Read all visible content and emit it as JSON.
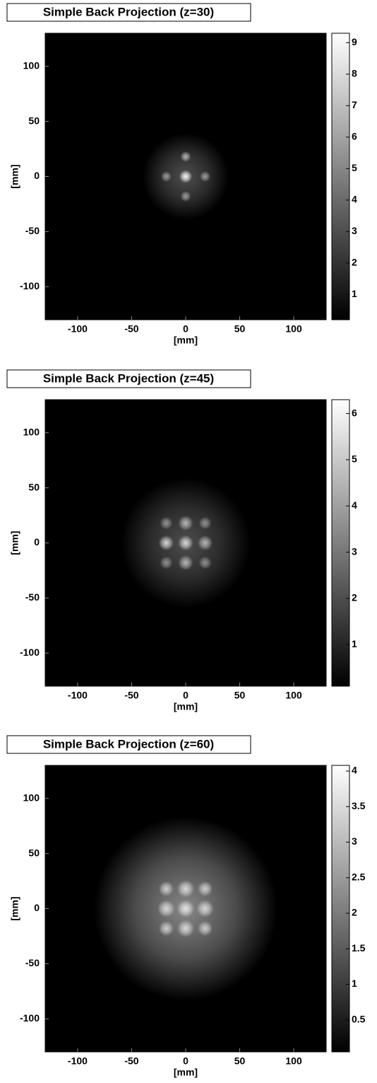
{
  "chart_data": [
    {
      "type": "heatmap",
      "title": "Simple Back Projection (z=30)",
      "xlabel": "[mm]",
      "ylabel": "[mm]",
      "xlim": [
        -130,
        130
      ],
      "ylim": [
        -130,
        130
      ],
      "xticks": [
        -100,
        -50,
        0,
        50,
        100
      ],
      "yticks": [
        -100,
        -50,
        0,
        50,
        100
      ],
      "x": [
        0,
        0,
        0,
        -18,
        18,
        0
      ],
      "y": [
        0,
        0,
        18,
        0,
        0,
        -18
      ],
      "sizes": [
        40,
        6,
        5,
        5,
        5,
        5
      ],
      "values": [
        3,
        9,
        6,
        5,
        5,
        5
      ],
      "colormap": "gray",
      "clim": [
        0.2,
        9.3
      ],
      "cticks": [
        1,
        2,
        3,
        4,
        5,
        6,
        7,
        8,
        9
      ]
    },
    {
      "type": "heatmap",
      "title": "Simple Back Projection (z=45)",
      "xlabel": "[mm]",
      "ylabel": "[mm]",
      "xlim": [
        -130,
        130
      ],
      "ylim": [
        -130,
        130
      ],
      "xticks": [
        -100,
        -50,
        0,
        50,
        100
      ],
      "yticks": [
        -100,
        -50,
        0,
        50,
        100
      ],
      "x": [
        0,
        0,
        -18,
        18,
        0,
        0,
        -18,
        18,
        -18,
        18
      ],
      "y": [
        0,
        0,
        0,
        0,
        18,
        -18,
        18,
        18,
        -18,
        -18
      ],
      "sizes": [
        60,
        7,
        7,
        7,
        7,
        7,
        6,
        6,
        6,
        6
      ],
      "values": [
        2,
        5,
        5,
        4,
        4,
        4,
        3,
        3,
        3,
        3
      ],
      "colormap": "gray",
      "clim": [
        0.1,
        6.3
      ],
      "cticks": [
        1,
        2,
        3,
        4,
        5,
        6
      ]
    },
    {
      "type": "heatmap",
      "title": "Simple Back Projection (z=60)",
      "xlabel": "[mm]",
      "ylabel": "[mm]",
      "xlim": [
        -130,
        130
      ],
      "ylim": [
        -130,
        130
      ],
      "xticks": [
        -100,
        -50,
        0,
        50,
        100
      ],
      "yticks": [
        -100,
        -50,
        0,
        50,
        100
      ],
      "x": [
        0,
        0,
        -18,
        18,
        0,
        0,
        -18,
        18,
        -18,
        18
      ],
      "y": [
        0,
        0,
        0,
        0,
        18,
        -18,
        18,
        18,
        -18,
        -18
      ],
      "sizes": [
        85,
        8,
        8,
        8,
        8,
        8,
        7,
        7,
        7,
        7
      ],
      "values": [
        2.2,
        3.2,
        3,
        3,
        3,
        3,
        2.8,
        2.8,
        2.8,
        2.8
      ],
      "colormap": "gray",
      "clim": [
        0.05,
        4.08
      ],
      "cticks": [
        0.5,
        1,
        1.5,
        2,
        2.5,
        3,
        3.5,
        4
      ]
    }
  ]
}
